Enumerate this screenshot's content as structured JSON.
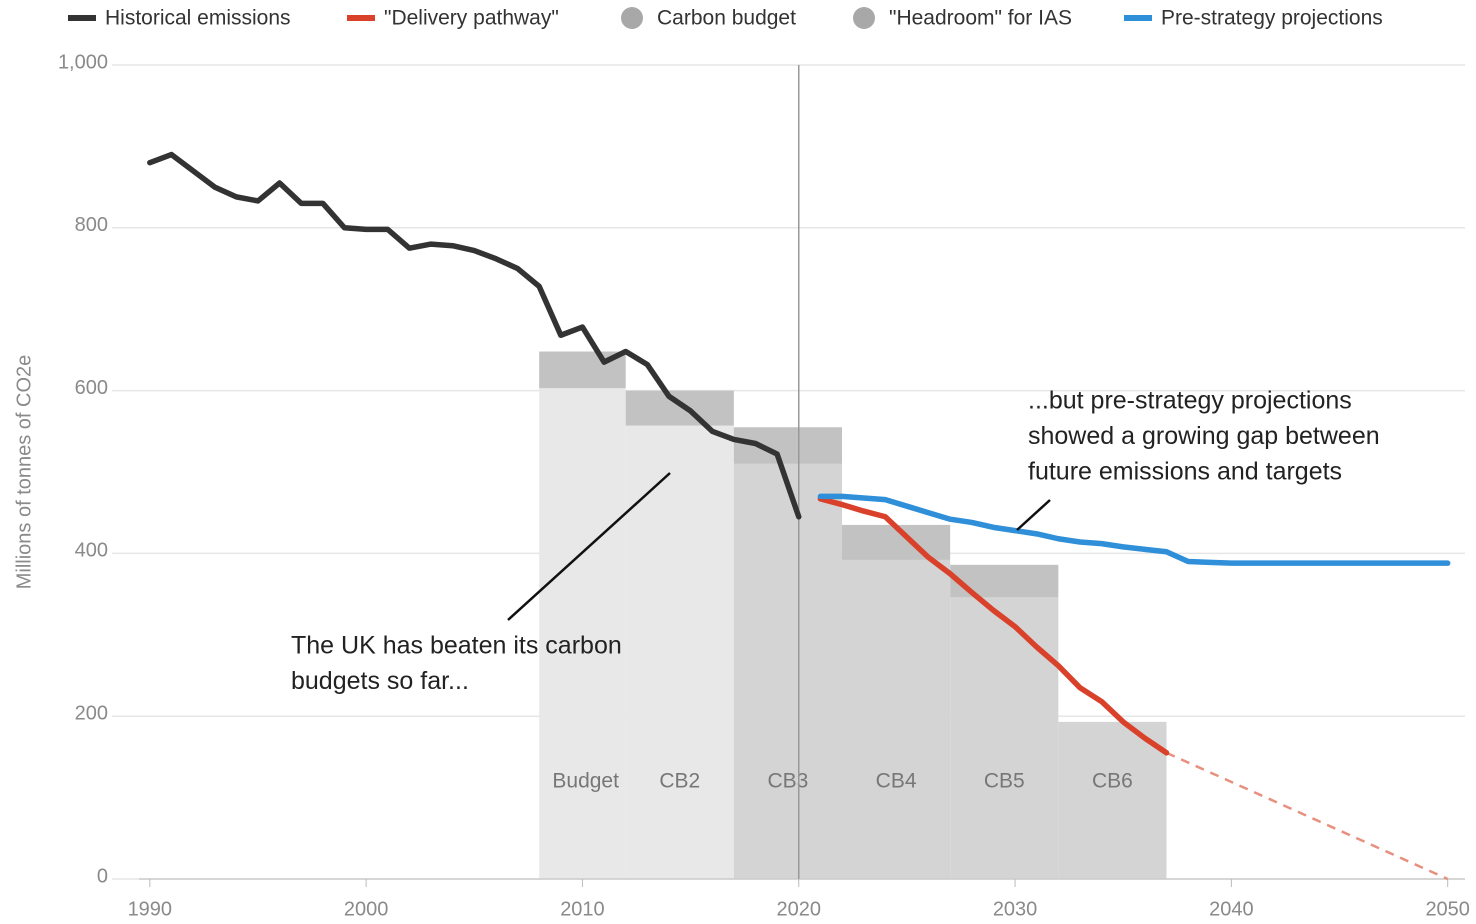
{
  "chart_data": {
    "type": "line",
    "ylabel": "Millions of tonnes of CO2e",
    "xlim": [
      1989.5,
      2050.8
    ],
    "xticks": [
      1990,
      2000,
      2010,
      2020,
      2030,
      2040,
      2050
    ],
    "ylim": [
      0,
      1000
    ],
    "yticks": [
      0,
      200,
      400,
      600,
      800,
      {
        "value": 1000,
        "label": "1,000"
      }
    ],
    "grid": true,
    "marker_line_x": 2020,
    "series": [
      {
        "name": "Historical emissions",
        "color": "#333333",
        "x": [
          1990,
          1991,
          1992,
          1993,
          1994,
          1995,
          1996,
          1997,
          1998,
          1999,
          2000,
          2001,
          2002,
          2003,
          2004,
          2005,
          2006,
          2007,
          2008,
          2009,
          2010,
          2011,
          2012,
          2013,
          2014,
          2015,
          2016,
          2017,
          2018,
          2019,
          2020
        ],
        "values": [
          880,
          890,
          870,
          850,
          838,
          833,
          855,
          830,
          830,
          800,
          798,
          798,
          775,
          780,
          778,
          772,
          762,
          750,
          728,
          668,
          678,
          635,
          648,
          632,
          593,
          575,
          550,
          540,
          535,
          522,
          445
        ]
      },
      {
        "name": "\"Delivery pathway\"",
        "color": "#d9412b",
        "x": [
          2021,
          2022,
          2023,
          2024,
          2025,
          2026,
          2027,
          2028,
          2029,
          2030,
          2031,
          2032,
          2033,
          2034,
          2035,
          2036,
          2037
        ],
        "values": [
          467,
          460,
          452,
          445,
          420,
          395,
          375,
          352,
          330,
          310,
          285,
          262,
          235,
          218,
          193,
          173,
          155
        ],
        "extension": {
          "color": "#e8907f",
          "x": [
            2037,
            2050
          ],
          "values": [
            155,
            0
          ]
        }
      },
      {
        "name": "Pre-strategy projections",
        "color": "#2f8fd8",
        "x": [
          2021,
          2022,
          2023,
          2024,
          2025,
          2026,
          2027,
          2028,
          2029,
          2030,
          2031,
          2032,
          2033,
          2034,
          2035,
          2036,
          2037,
          2038,
          2039,
          2040,
          2050
        ],
        "values": [
          470,
          470,
          468,
          466,
          458,
          450,
          442,
          438,
          432,
          428,
          424,
          418,
          414,
          412,
          408,
          405,
          402,
          390,
          389,
          388,
          388
        ]
      }
    ],
    "budget_legend": [
      {
        "name": "Carbon budget",
        "color": "#a8a8a8"
      },
      {
        "name": "\"Headroom\" for IAS",
        "color": "#a8a8a8"
      }
    ],
    "budgets": [
      {
        "name": "Budget 1",
        "start": 2008,
        "end": 2012,
        "value": 603,
        "headroom": 45,
        "color": "#e8e8e8"
      },
      {
        "name": "CB2",
        "start": 2012,
        "end": 2017,
        "value": 557,
        "headroom": 43,
        "color": "#e8e8e8"
      },
      {
        "name": "CB3",
        "start": 2017,
        "end": 2022,
        "value": 510,
        "headroom": 45,
        "color": "#d4d4d4"
      },
      {
        "name": "CB4",
        "start": 2022,
        "end": 2027,
        "value": 392,
        "headroom": 43,
        "color": "#d4d4d4"
      },
      {
        "name": "CB5",
        "start": 2027,
        "end": 2032,
        "value": 346,
        "headroom": 40,
        "color": "#d4d4d4"
      },
      {
        "name": "CB6",
        "start": 2032,
        "end": 2037,
        "value": 193,
        "headroom": null,
        "color": "#d4d4d4"
      }
    ],
    "headroom_color": "#c2c2c2",
    "annotations": [
      {
        "lines": [
          "The UK has beaten its carbon",
          "budgets so far..."
        ]
      },
      {
        "lines": [
          "...but pre-strategy projections",
          "showed a growing gap between",
          "future emissions and targets"
        ]
      }
    ]
  }
}
